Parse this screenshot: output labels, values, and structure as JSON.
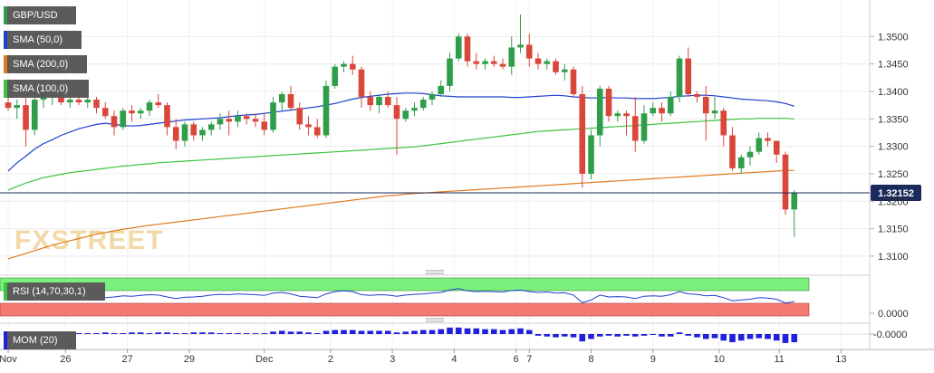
{
  "chart_data": [
    {
      "type": "candlestick",
      "title": "GBP/USD",
      "brand": "FXSTREET",
      "y_ticks": [
        "1.3500",
        "1.3450",
        "1.3400",
        "1.3350",
        "1.3300",
        "1.3250",
        "1.3200",
        "1.3150",
        "1.3100"
      ],
      "ylim": [
        1.3085,
        1.355
      ],
      "current_price": "1.32152",
      "current_value": 1.32152,
      "x_tick_labels": [
        "Nov",
        "26",
        "27",
        "29",
        "Dec",
        "2",
        "3",
        "4",
        "6",
        "7",
        "8",
        "9",
        "10",
        "11",
        "13"
      ],
      "candles": [
        [
          1.338,
          1.339,
          1.3365,
          1.337
        ],
        [
          1.337,
          1.3385,
          1.335,
          1.3375
        ],
        [
          1.3375,
          1.339,
          1.33,
          1.333
        ],
        [
          1.333,
          1.3395,
          1.332,
          1.3385
        ],
        [
          1.3385,
          1.34,
          1.337,
          1.339
        ],
        [
          1.339,
          1.341,
          1.3375,
          1.3395
        ],
        [
          1.3395,
          1.3405,
          1.3375,
          1.338
        ],
        [
          1.338,
          1.3395,
          1.337,
          1.3385
        ],
        [
          1.3385,
          1.3395,
          1.3375,
          1.338
        ],
        [
          1.338,
          1.3395,
          1.337,
          1.3385
        ],
        [
          1.3385,
          1.339,
          1.336,
          1.337
        ],
        [
          1.337,
          1.338,
          1.335,
          1.3355
        ],
        [
          1.3355,
          1.3365,
          1.332,
          1.3335
        ],
        [
          1.3335,
          1.337,
          1.333,
          1.3365
        ],
        [
          1.3365,
          1.3375,
          1.3345,
          1.336
        ],
        [
          1.336,
          1.337,
          1.335,
          1.3365
        ],
        [
          1.3365,
          1.3385,
          1.3355,
          1.338
        ],
        [
          1.338,
          1.3395,
          1.337,
          1.3375
        ],
        [
          1.3375,
          1.338,
          1.332,
          1.3335
        ],
        [
          1.3335,
          1.335,
          1.3295,
          1.331
        ],
        [
          1.331,
          1.3345,
          1.33,
          1.334
        ],
        [
          1.334,
          1.3345,
          1.331,
          1.332
        ],
        [
          1.332,
          1.3335,
          1.331,
          1.333
        ],
        [
          1.333,
          1.3345,
          1.332,
          1.334
        ],
        [
          1.334,
          1.336,
          1.333,
          1.335
        ],
        [
          1.335,
          1.3365,
          1.332,
          1.3345
        ],
        [
          1.3345,
          1.3365,
          1.3335,
          1.3355
        ],
        [
          1.3355,
          1.336,
          1.334,
          1.335
        ],
        [
          1.335,
          1.336,
          1.3335,
          1.3345
        ],
        [
          1.3345,
          1.336,
          1.332,
          1.333
        ],
        [
          1.333,
          1.339,
          1.3325,
          1.338
        ],
        [
          1.338,
          1.34,
          1.3365,
          1.3395
        ],
        [
          1.3395,
          1.341,
          1.3365,
          1.337
        ],
        [
          1.337,
          1.338,
          1.333,
          1.334
        ],
        [
          1.334,
          1.3355,
          1.332,
          1.3335
        ],
        [
          1.3335,
          1.335,
          1.3315,
          1.332
        ],
        [
          1.332,
          1.342,
          1.3315,
          1.341
        ],
        [
          1.341,
          1.345,
          1.3405,
          1.3445
        ],
        [
          1.3445,
          1.3455,
          1.3435,
          1.345
        ],
        [
          1.345,
          1.3465,
          1.343,
          1.344
        ],
        [
          1.344,
          1.3445,
          1.337,
          1.339
        ],
        [
          1.339,
          1.34,
          1.3365,
          1.3375
        ],
        [
          1.3375,
          1.3395,
          1.336,
          1.339
        ],
        [
          1.339,
          1.34,
          1.337,
          1.3375
        ],
        [
          1.3375,
          1.339,
          1.3285,
          1.335
        ],
        [
          1.335,
          1.337,
          1.3345,
          1.3365
        ],
        [
          1.3365,
          1.338,
          1.3355,
          1.337
        ],
        [
          1.337,
          1.339,
          1.3365,
          1.3385
        ],
        [
          1.3385,
          1.34,
          1.3375,
          1.3395
        ],
        [
          1.3395,
          1.342,
          1.339,
          1.341
        ],
        [
          1.341,
          1.347,
          1.34,
          1.346
        ],
        [
          1.346,
          1.3505,
          1.3455,
          1.35
        ],
        [
          1.35,
          1.3505,
          1.3445,
          1.3455
        ],
        [
          1.3455,
          1.347,
          1.344,
          1.345
        ],
        [
          1.345,
          1.346,
          1.344,
          1.3455
        ],
        [
          1.3455,
          1.3465,
          1.3445,
          1.345
        ],
        [
          1.345,
          1.346,
          1.344,
          1.3445
        ],
        [
          1.3445,
          1.35,
          1.343,
          1.348
        ],
        [
          1.348,
          1.354,
          1.347,
          1.3485
        ],
        [
          1.3485,
          1.3505,
          1.3445,
          1.346
        ],
        [
          1.346,
          1.347,
          1.344,
          1.345
        ],
        [
          1.345,
          1.346,
          1.344,
          1.3455
        ],
        [
          1.3455,
          1.346,
          1.343,
          1.3435
        ],
        [
          1.3435,
          1.345,
          1.342,
          1.344
        ],
        [
          1.344,
          1.3445,
          1.339,
          1.3395
        ],
        [
          1.3395,
          1.341,
          1.3225,
          1.325
        ],
        [
          1.325,
          1.333,
          1.324,
          1.332
        ],
        [
          1.332,
          1.341,
          1.33,
          1.3405
        ],
        [
          1.3405,
          1.341,
          1.3345,
          1.3355
        ],
        [
          1.3355,
          1.3365,
          1.3345,
          1.336
        ],
        [
          1.336,
          1.3365,
          1.332,
          1.3355
        ],
        [
          1.3355,
          1.339,
          1.329,
          1.331
        ],
        [
          1.331,
          1.3375,
          1.3305,
          1.336
        ],
        [
          1.336,
          1.338,
          1.3355,
          1.337
        ],
        [
          1.337,
          1.338,
          1.3345,
          1.336
        ],
        [
          1.336,
          1.34,
          1.3355,
          1.339
        ],
        [
          1.339,
          1.3465,
          1.338,
          1.346
        ],
        [
          1.346,
          1.348,
          1.339,
          1.3395
        ],
        [
          1.3395,
          1.34,
          1.338,
          1.339
        ],
        [
          1.339,
          1.341,
          1.331,
          1.336
        ],
        [
          1.336,
          1.339,
          1.335,
          1.3365
        ],
        [
          1.3365,
          1.337,
          1.33,
          1.332
        ],
        [
          1.332,
          1.3335,
          1.3255,
          1.326
        ],
        [
          1.326,
          1.3285,
          1.325,
          1.328
        ],
        [
          1.328,
          1.33,
          1.3265,
          1.329
        ],
        [
          1.329,
          1.3325,
          1.3285,
          1.3315
        ],
        [
          1.3315,
          1.3325,
          1.33,
          1.331
        ],
        [
          1.331,
          1.331,
          1.327,
          1.3285
        ],
        [
          1.3285,
          1.329,
          1.3175,
          1.3185
        ],
        [
          1.3185,
          1.322,
          1.3135,
          1.3215
        ]
      ],
      "sma50": [
        1.3255,
        1.327,
        1.3282,
        1.3295,
        1.3305,
        1.3312,
        1.332,
        1.3326,
        1.3332,
        1.3336,
        1.334,
        1.3342,
        1.334,
        1.3338,
        1.3337,
        1.3338,
        1.334,
        1.3342,
        1.3344,
        1.3346,
        1.3348,
        1.3349,
        1.335,
        1.3351,
        1.3352,
        1.3354,
        1.3356,
        1.3357,
        1.3358,
        1.336,
        1.3362,
        1.3364,
        1.3366,
        1.3368,
        1.337,
        1.3372,
        1.3375,
        1.3378,
        1.3382,
        1.3386,
        1.3389,
        1.3391,
        1.3393,
        1.3395,
        1.3396,
        1.3397,
        1.3397,
        1.3396,
        1.3394,
        1.3392,
        1.3391,
        1.339,
        1.339,
        1.339,
        1.339,
        1.339,
        1.339,
        1.3389,
        1.3389,
        1.339,
        1.3391,
        1.3392,
        1.3393,
        1.3392,
        1.339,
        1.3389,
        1.3388,
        1.3388,
        1.3389,
        1.3388,
        1.3388,
        1.3387,
        1.3387,
        1.3387,
        1.3388,
        1.3389,
        1.3391,
        1.3392,
        1.3393,
        1.3393,
        1.3392,
        1.339,
        1.3388,
        1.3386,
        1.3385,
        1.3384,
        1.3383,
        1.3381,
        1.3378,
        1.3373
      ],
      "sma100": [
        1.322,
        1.3227,
        1.3233,
        1.3238,
        1.3243,
        1.3246,
        1.3249,
        1.3252,
        1.3254,
        1.3256,
        1.3258,
        1.326,
        1.3262,
        1.3264,
        1.3265,
        1.3267,
        1.3268,
        1.327,
        1.3271,
        1.3272,
        1.3273,
        1.3274,
        1.3275,
        1.3276,
        1.3277,
        1.3278,
        1.3279,
        1.328,
        1.3281,
        1.3282,
        1.3283,
        1.3284,
        1.3285,
        1.3286,
        1.3287,
        1.3288,
        1.3289,
        1.329,
        1.3291,
        1.3292,
        1.3293,
        1.3294,
        1.3295,
        1.3296,
        1.3297,
        1.3298,
        1.3299,
        1.3301,
        1.3303,
        1.3305,
        1.3307,
        1.3309,
        1.3311,
        1.3313,
        1.3315,
        1.3317,
        1.3319,
        1.3321,
        1.3323,
        1.3325,
        1.3327,
        1.3328,
        1.3329,
        1.333,
        1.3331,
        1.3332,
        1.3333,
        1.3334,
        1.3335,
        1.3336,
        1.3337,
        1.3338,
        1.3339,
        1.334,
        1.3341,
        1.3342,
        1.3343,
        1.3344,
        1.3345,
        1.3346,
        1.3347,
        1.3348,
        1.3349,
        1.335,
        1.335,
        1.3351,
        1.3351,
        1.3351,
        1.3351,
        1.335
      ],
      "sma200": [
        1.3095,
        1.31,
        1.3105,
        1.311,
        1.3115,
        1.312,
        1.3124,
        1.3128,
        1.3132,
        1.3136,
        1.314,
        1.3143,
        1.3146,
        1.3149,
        1.3151,
        1.3154,
        1.3156,
        1.3158,
        1.316,
        1.3162,
        1.3164,
        1.3166,
        1.3168,
        1.317,
        1.3172,
        1.3174,
        1.3176,
        1.3178,
        1.318,
        1.3182,
        1.3184,
        1.3186,
        1.3188,
        1.319,
        1.3192,
        1.3194,
        1.3196,
        1.3198,
        1.32,
        1.3202,
        1.3204,
        1.3206,
        1.3208,
        1.321,
        1.3211,
        1.3213,
        1.3214,
        1.3215,
        1.3216,
        1.3217,
        1.3218,
        1.3219,
        1.322,
        1.3221,
        1.3222,
        1.3223,
        1.3224,
        1.3225,
        1.3226,
        1.3227,
        1.3228,
        1.3229,
        1.323,
        1.3231,
        1.3232,
        1.3233,
        1.3234,
        1.3235,
        1.3236,
        1.3237,
        1.3238,
        1.3239,
        1.324,
        1.3241,
        1.3242,
        1.3243,
        1.3244,
        1.3245,
        1.3246,
        1.3247,
        1.3248,
        1.3249,
        1.325,
        1.3251,
        1.3252,
        1.3253,
        1.3254,
        1.3255,
        1.3256,
        1.3256
      ],
      "legend": [
        {
          "label": "GBP/USD",
          "color": "#2f9e4a"
        },
        {
          "label": "SMA (50,0)",
          "color": "#1f3fd1"
        },
        {
          "label": "SMA (200,0)",
          "color": "#e07a1f"
        },
        {
          "label": "SMA (100,0)",
          "color": "#3cc43c"
        }
      ],
      "colors": {
        "up": "#2f9e4a",
        "down": "#d9473b",
        "sma50": "#1f3fd1",
        "sma100": "#3cc43c",
        "sma200": "#e07a1f",
        "price_line": "#1a2a5a"
      }
    },
    {
      "type": "line",
      "title": "RSI (14,70,30,1)",
      "y_tick": "0.0000",
      "zones": {
        "overbought_color": "#7cf07c",
        "oversold_color": "#f47a72"
      },
      "values": [
        0.55,
        0.58,
        0.52,
        0.56,
        0.57,
        0.56,
        0.55,
        0.57,
        0.56,
        0.55,
        0.52,
        0.48,
        0.5,
        0.53,
        0.52,
        0.54,
        0.56,
        0.55,
        0.5,
        0.46,
        0.49,
        0.5,
        0.52,
        0.55,
        0.57,
        0.56,
        0.58,
        0.57,
        0.56,
        0.54,
        0.6,
        0.62,
        0.58,
        0.52,
        0.5,
        0.48,
        0.58,
        0.64,
        0.66,
        0.64,
        0.56,
        0.54,
        0.56,
        0.55,
        0.52,
        0.55,
        0.57,
        0.58,
        0.6,
        0.62,
        0.68,
        0.72,
        0.66,
        0.64,
        0.65,
        0.64,
        0.63,
        0.67,
        0.68,
        0.64,
        0.62,
        0.63,
        0.6,
        0.61,
        0.55,
        0.35,
        0.42,
        0.55,
        0.5,
        0.51,
        0.5,
        0.46,
        0.52,
        0.53,
        0.52,
        0.56,
        0.64,
        0.58,
        0.57,
        0.53,
        0.54,
        0.48,
        0.4,
        0.42,
        0.44,
        0.48,
        0.47,
        0.44,
        0.34,
        0.38
      ]
    },
    {
      "type": "bar",
      "title": "MOM (20)",
      "y_tick": "-0.0000",
      "color": "#1f1fe0",
      "values": [
        0.0002,
        0.0002,
        0.0003,
        0.0002,
        0.0001,
        0.0002,
        0.0002,
        0.0001,
        0.0001,
        0.0001,
        0.0001,
        0.0002,
        0.0001,
        0.0001,
        0.0002,
        0.0002,
        0.0001,
        0.0002,
        0.0002,
        0.0001,
        0.0001,
        0.0002,
        0.0002,
        0.0002,
        0.0001,
        0.0001,
        0.0001,
        0.0001,
        0.0001,
        0.0001,
        0.0003,
        0.0004,
        0.0003,
        0.0003,
        0.0002,
        0.0001,
        0.0004,
        0.0005,
        0.0005,
        0.0005,
        0.0004,
        0.0004,
        0.0004,
        0.0004,
        0.0002,
        0.0003,
        0.0004,
        0.0005,
        0.0005,
        0.0006,
        0.0008,
        0.0008,
        0.0007,
        0.0007,
        0.0006,
        0.0006,
        0.0005,
        0.0006,
        0.0007,
        0.0005,
        -0.0002,
        -0.0003,
        -0.0004,
        -0.0003,
        -0.0004,
        -0.0009,
        -0.0006,
        -0.0003,
        -0.0002,
        -0.0003,
        -0.0002,
        -0.0003,
        -0.0002,
        -0.0001,
        -0.0003,
        -0.0003,
        0.0002,
        -0.0002,
        -0.0004,
        -0.0006,
        -0.0005,
        -0.0008,
        -0.001,
        -0.0008,
        -0.0006,
        -0.0005,
        -0.0006,
        -0.0008,
        -0.0011,
        -0.001
      ]
    }
  ]
}
